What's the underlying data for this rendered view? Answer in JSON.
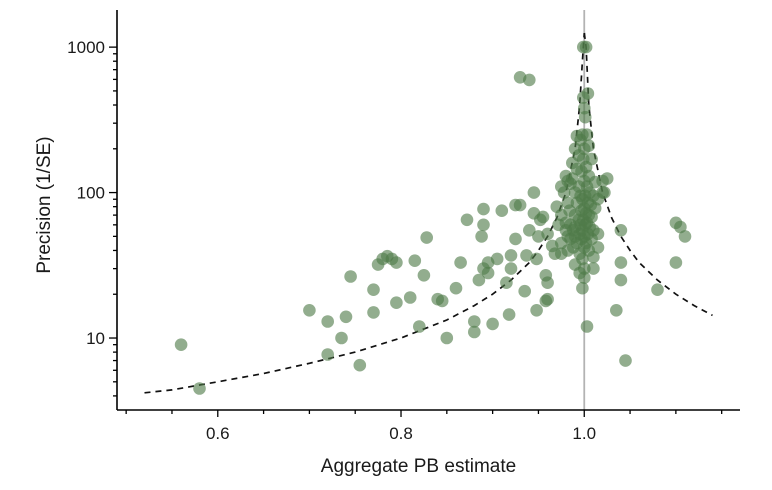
{
  "chart_data": {
    "type": "scatter",
    "title": "",
    "xlabel": "Aggregate PB estimate",
    "ylabel": "Precision (1/SE)",
    "xlim": [
      0.49,
      1.17
    ],
    "ylim": [
      3.2,
      1800
    ],
    "y_scale": "log",
    "x_ticks": [
      0.6,
      0.8,
      1.0
    ],
    "x_tick_labels": [
      "0.6",
      "0.8",
      "1.0"
    ],
    "y_ticks": [
      10,
      100,
      1000
    ],
    "y_tick_labels": [
      "10",
      "100",
      "1000"
    ],
    "grid": false,
    "reference_line_x": 1.0,
    "funnel_curve": {
      "description": "dashed funnel: precision ≈ 2/|1 - x|",
      "x": [
        0.52,
        0.55,
        0.6,
        0.65,
        0.7,
        0.75,
        0.8,
        0.85,
        0.88,
        0.9,
        0.92,
        0.94,
        0.95,
        0.96,
        0.97,
        0.98,
        0.99,
        0.995,
        0.998,
        1.0,
        1.002,
        1.005,
        1.01,
        1.02,
        1.03,
        1.04,
        1.05,
        1.06,
        1.08,
        1.1,
        1.12,
        1.14
      ],
      "y": [
        4.2,
        4.4,
        5,
        5.7,
        6.7,
        8,
        10,
        13.3,
        16.7,
        20,
        25,
        33,
        40,
        50,
        67,
        100,
        200,
        400,
        800,
        1250,
        1000,
        400,
        200,
        100,
        67,
        50,
        40,
        33,
        25,
        20,
        16.7,
        14.3
      ]
    },
    "points_color": "#4f7a49",
    "points": [
      [
        0.56,
        9
      ],
      [
        0.58,
        4.5
      ],
      [
        0.7,
        15.5
      ],
      [
        0.72,
        13
      ],
      [
        0.72,
        7.7
      ],
      [
        0.735,
        10
      ],
      [
        0.74,
        14
      ],
      [
        0.745,
        26.5
      ],
      [
        0.755,
        6.5
      ],
      [
        0.77,
        21.5
      ],
      [
        0.77,
        15
      ],
      [
        0.775,
        32
      ],
      [
        0.78,
        35
      ],
      [
        0.785,
        36.5
      ],
      [
        0.79,
        35
      ],
      [
        0.795,
        33
      ],
      [
        0.795,
        17.5
      ],
      [
        0.81,
        19
      ],
      [
        0.815,
        34
      ],
      [
        0.82,
        12
      ],
      [
        0.825,
        27
      ],
      [
        0.828,
        49
      ],
      [
        0.84,
        18.5
      ],
      [
        0.845,
        18
      ],
      [
        0.85,
        10
      ],
      [
        0.86,
        22
      ],
      [
        0.865,
        33
      ],
      [
        0.872,
        65
      ],
      [
        0.88,
        13
      ],
      [
        0.88,
        11
      ],
      [
        0.885,
        25
      ],
      [
        0.888,
        50
      ],
      [
        0.89,
        60
      ],
      [
        0.89,
        30
      ],
      [
        0.895,
        28
      ],
      [
        0.895,
        33
      ],
      [
        0.89,
        77
      ],
      [
        0.9,
        12.5
      ],
      [
        0.905,
        35
      ],
      [
        0.91,
        75
      ],
      [
        0.915,
        24
      ],
      [
        0.918,
        14.5
      ],
      [
        0.92,
        37
      ],
      [
        0.92,
        30
      ],
      [
        0.925,
        82
      ],
      [
        0.925,
        48
      ],
      [
        0.93,
        82
      ],
      [
        0.93,
        620
      ],
      [
        0.935,
        21
      ],
      [
        0.937,
        37
      ],
      [
        0.94,
        595
      ],
      [
        0.94,
        55
      ],
      [
        0.945,
        100
      ],
      [
        0.945,
        72
      ],
      [
        0.948,
        35
      ],
      [
        0.948,
        15.5
      ],
      [
        0.95,
        50
      ],
      [
        0.952,
        65
      ],
      [
        0.955,
        68
      ],
      [
        0.958,
        18
      ],
      [
        0.958,
        27
      ],
      [
        0.96,
        52
      ],
      [
        0.96,
        24
      ],
      [
        0.96,
        18.5
      ],
      [
        0.965,
        43
      ],
      [
        0.968,
        38
      ],
      [
        0.97,
        80
      ],
      [
        0.972,
        60
      ],
      [
        0.975,
        110
      ],
      [
        0.975,
        70
      ],
      [
        0.975,
        45
      ],
      [
        0.975,
        38
      ],
      [
        0.978,
        100
      ],
      [
        0.98,
        130
      ],
      [
        0.98,
        62
      ],
      [
        0.98,
        55
      ],
      [
        0.982,
        120
      ],
      [
        0.982,
        85
      ],
      [
        0.982,
        50
      ],
      [
        0.982,
        40
      ],
      [
        0.984,
        75
      ],
      [
        0.985,
        115
      ],
      [
        0.985,
        60
      ],
      [
        0.985,
        48
      ],
      [
        0.987,
        160
      ],
      [
        0.987,
        125
      ],
      [
        0.988,
        55
      ],
      [
        0.988,
        42
      ],
      [
        0.99,
        200
      ],
      [
        0.99,
        100
      ],
      [
        0.99,
        70
      ],
      [
        0.99,
        58
      ],
      [
        0.99,
        50
      ],
      [
        0.99,
        32
      ],
      [
        0.992,
        245
      ],
      [
        0.992,
        145
      ],
      [
        0.992,
        85
      ],
      [
        0.992,
        45
      ],
      [
        0.994,
        180
      ],
      [
        0.994,
        110
      ],
      [
        0.994,
        65
      ],
      [
        0.995,
        52
      ],
      [
        0.995,
        38
      ],
      [
        0.995,
        28
      ],
      [
        0.996,
        230
      ],
      [
        0.996,
        95
      ],
      [
        0.996,
        60
      ],
      [
        0.997,
        140
      ],
      [
        0.997,
        75
      ],
      [
        0.997,
        48
      ],
      [
        0.998,
        250
      ],
      [
        0.998,
        90
      ],
      [
        0.998,
        55
      ],
      [
        0.998,
        35
      ],
      [
        0.998,
        22
      ],
      [
        0.999,
        1000
      ],
      [
        0.999,
        450
      ],
      [
        0.999,
        170
      ],
      [
        0.999,
        65
      ],
      [
        1.0,
        380
      ],
      [
        1.0,
        200
      ],
      [
        1.0,
        120
      ],
      [
        1.0,
        78
      ],
      [
        1.0,
        50
      ],
      [
        1.0,
        42
      ],
      [
        1.0,
        30
      ],
      [
        1.0,
        26
      ],
      [
        1.001,
        330
      ],
      [
        1.001,
        95
      ],
      [
        1.001,
        60
      ],
      [
        1.002,
        1000
      ],
      [
        1.002,
        150
      ],
      [
        1.002,
        72
      ],
      [
        1.002,
        45
      ],
      [
        1.003,
        250
      ],
      [
        1.003,
        110
      ],
      [
        1.003,
        62
      ],
      [
        1.003,
        12
      ],
      [
        1.004,
        480
      ],
      [
        1.004,
        85
      ],
      [
        1.004,
        52
      ],
      [
        1.005,
        210
      ],
      [
        1.005,
        130
      ],
      [
        1.005,
        70
      ],
      [
        1.005,
        40
      ],
      [
        1.006,
        100
      ],
      [
        1.006,
        58
      ],
      [
        1.007,
        82
      ],
      [
        1.008,
        170
      ],
      [
        1.008,
        68
      ],
      [
        1.008,
        48
      ],
      [
        1.01,
        95
      ],
      [
        1.01,
        55
      ],
      [
        1.01,
        36
      ],
      [
        1.01,
        30
      ],
      [
        1.012,
        118
      ],
      [
        1.012,
        78
      ],
      [
        1.015,
        90
      ],
      [
        1.015,
        42
      ],
      [
        1.015,
        52
      ],
      [
        1.02,
        120
      ],
      [
        1.02,
        100
      ],
      [
        1.022,
        100
      ],
      [
        1.025,
        125
      ],
      [
        1.035,
        15.5
      ],
      [
        1.04,
        33
      ],
      [
        1.04,
        25
      ],
      [
        1.04,
        55
      ],
      [
        1.045,
        7
      ],
      [
        1.08,
        21.5
      ],
      [
        1.1,
        62
      ],
      [
        1.1,
        33
      ],
      [
        1.105,
        58
      ],
      [
        1.11,
        50
      ]
    ]
  }
}
